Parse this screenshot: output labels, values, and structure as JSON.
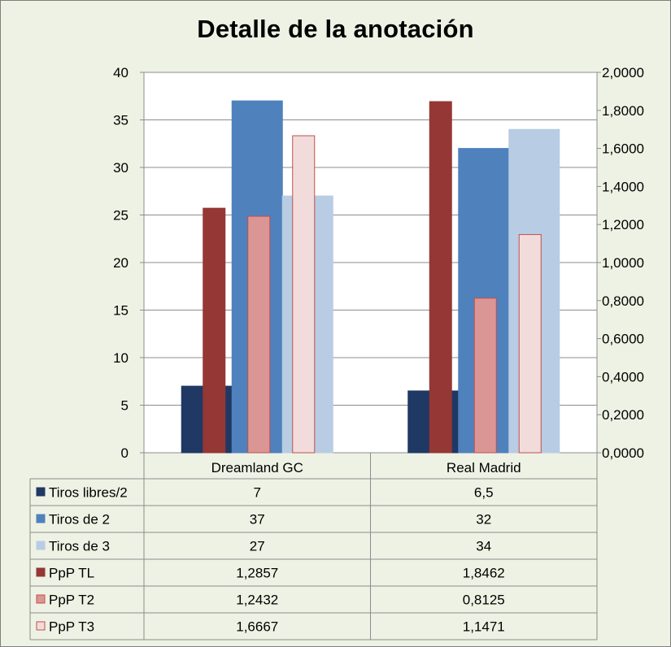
{
  "chart_data": {
    "type": "bar",
    "title": "Detalle de la anotación",
    "categories": [
      "Dreamland GC",
      "Real Madrid"
    ],
    "series": [
      {
        "name": "Tiros libres/2",
        "axis": "left",
        "values": [
          7,
          6.5
        ],
        "labels": [
          "7",
          "6,5"
        ],
        "color": "#1f3864",
        "border": "#1f3864"
      },
      {
        "name": "Tiros de 2",
        "axis": "left",
        "values": [
          37,
          32
        ],
        "labels": [
          "37",
          "32"
        ],
        "color": "#4f81bd",
        "border": "#4f81bd"
      },
      {
        "name": "Tiros de 3",
        "axis": "left",
        "values": [
          27,
          34
        ],
        "labels": [
          "27",
          "34"
        ],
        "color": "#b8cce4",
        "border": "#b8cce4"
      },
      {
        "name": "PpP TL",
        "axis": "right",
        "values": [
          1.2857,
          1.8462
        ],
        "labels": [
          "1,2857",
          "1,8462"
        ],
        "color": "#953735",
        "border": "#953735"
      },
      {
        "name": "PpP T2",
        "axis": "right",
        "values": [
          1.2432,
          0.8125
        ],
        "labels": [
          "1,2432",
          "0,8125"
        ],
        "color": "#da9694",
        "border": "#c0504d"
      },
      {
        "name": "PpP T3",
        "axis": "right",
        "values": [
          1.6667,
          1.1471
        ],
        "labels": [
          "1,6667",
          "1,1471"
        ],
        "color": "#f2dcdb",
        "border": "#c0504d"
      }
    ],
    "y_left": {
      "ylim": [
        0,
        40
      ],
      "ticks": [
        "0",
        "5",
        "10",
        "15",
        "20",
        "25",
        "30",
        "35",
        "40"
      ]
    },
    "y_right": {
      "ylim": [
        0,
        2
      ],
      "ticks": [
        "0,0000",
        "0,2000",
        "0,4000",
        "0,6000",
        "0,8000",
        "1,0000",
        "1,2000",
        "1,4000",
        "1,6000",
        "1,8000",
        "2,0000"
      ]
    },
    "grid": true,
    "legend": "data-table"
  }
}
